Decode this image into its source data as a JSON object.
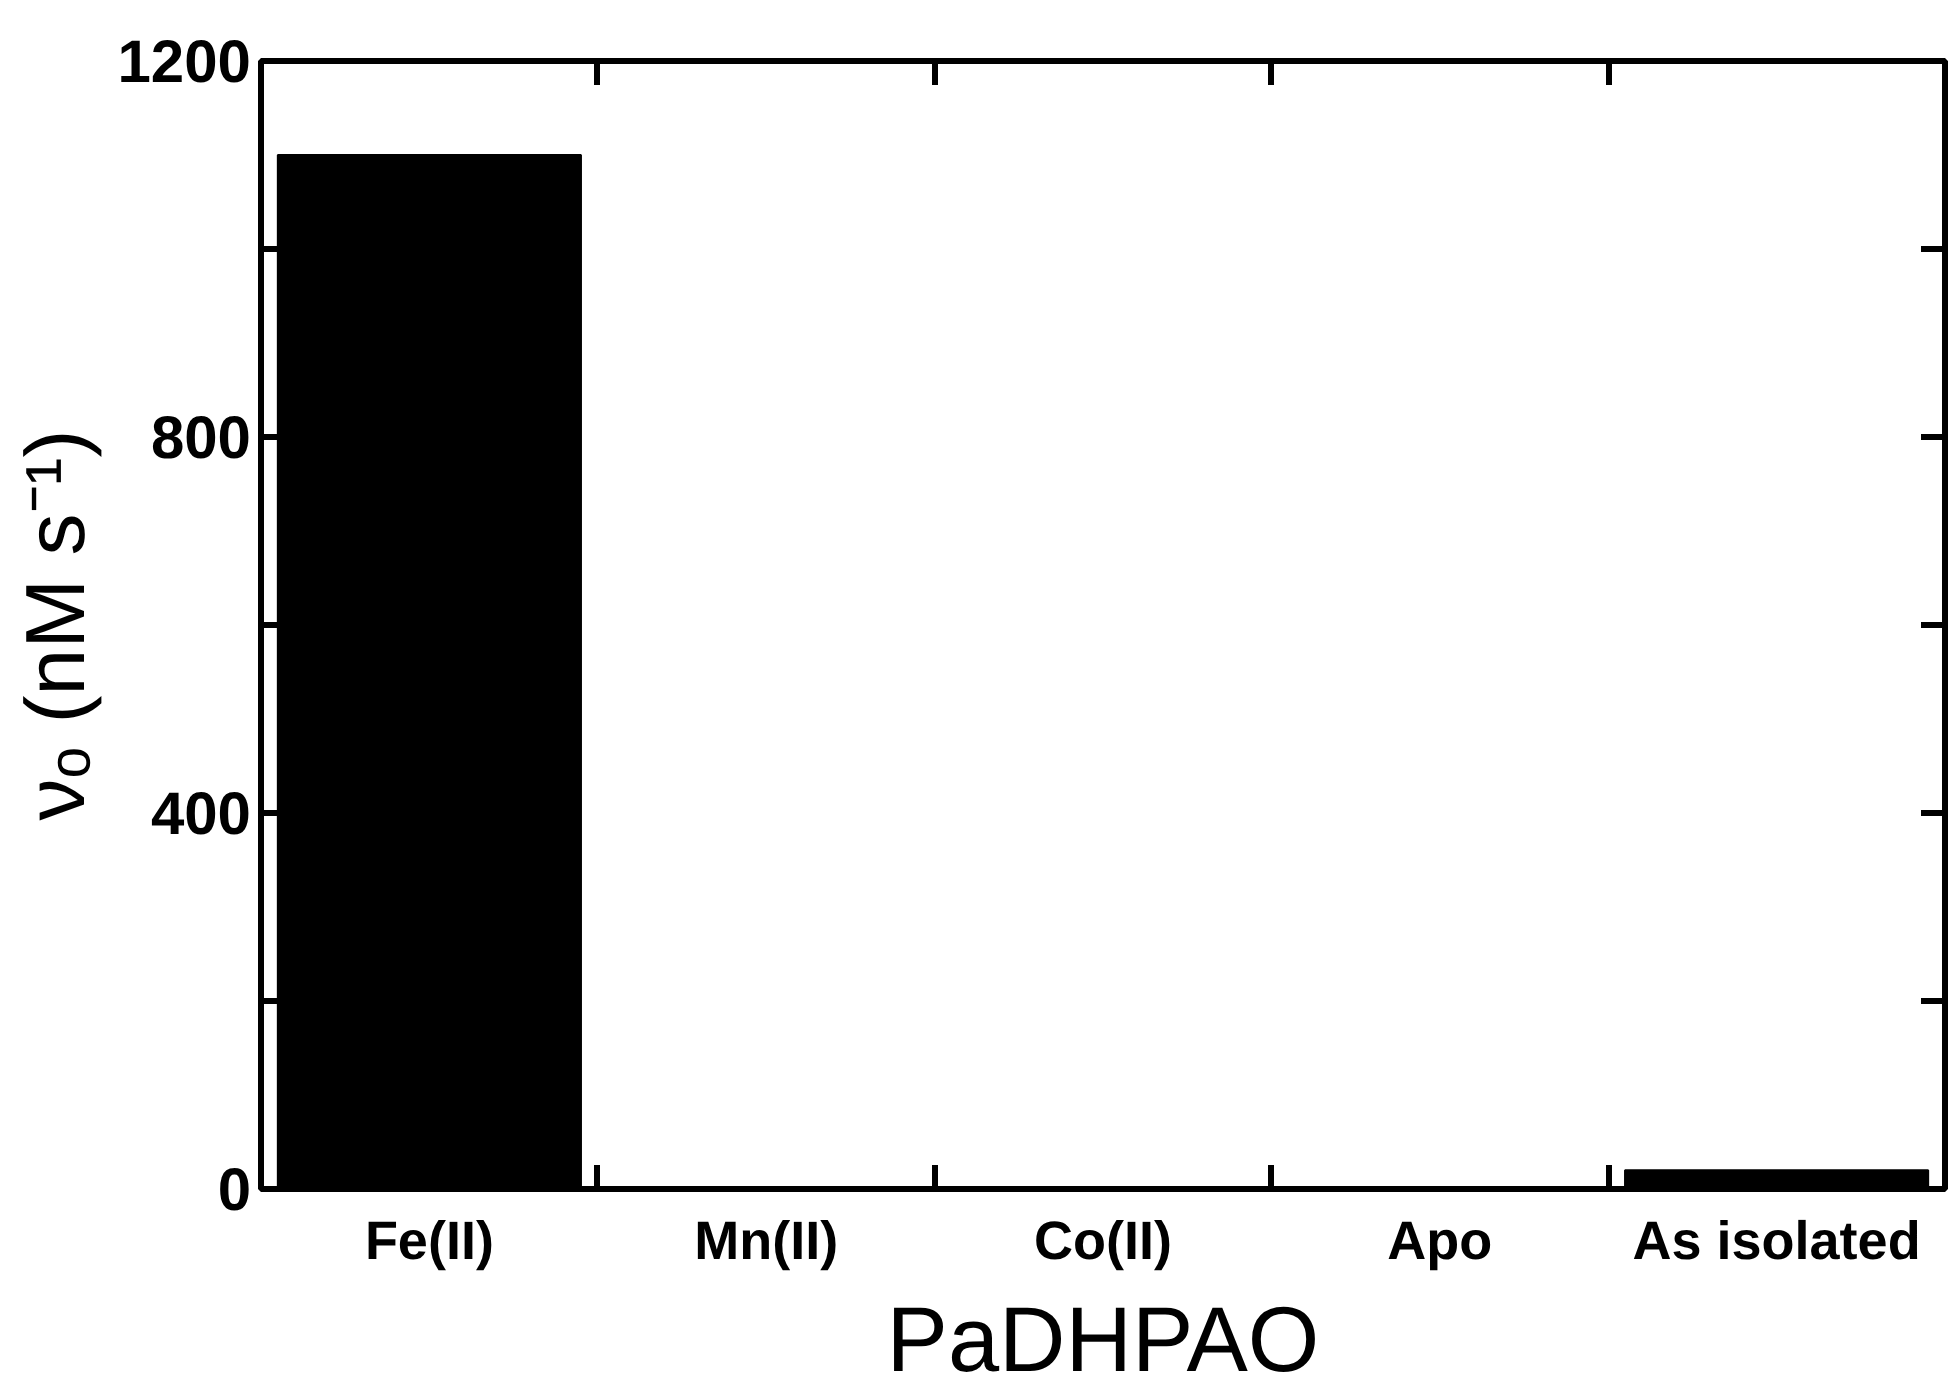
{
  "chart_data": {
    "type": "bar",
    "categories": [
      "Fe(II)",
      "Mn(II)",
      "Co(II)",
      "Apo",
      "As isolated"
    ],
    "values": [
      1100,
      0,
      0,
      0,
      20
    ],
    "color": "#000000",
    "xlabel": "PaDHPAO",
    "ylabel": "νₒ (nM s⁻¹)",
    "ylim": [
      0,
      1200
    ],
    "yticks": [
      0,
      {
        "value": 200,
        "label": null
      },
      400,
      {
        "value": 600,
        "label": null
      },
      800,
      {
        "value": 1000,
        "label": null
      },
      1200
    ],
    "grid": false
  }
}
